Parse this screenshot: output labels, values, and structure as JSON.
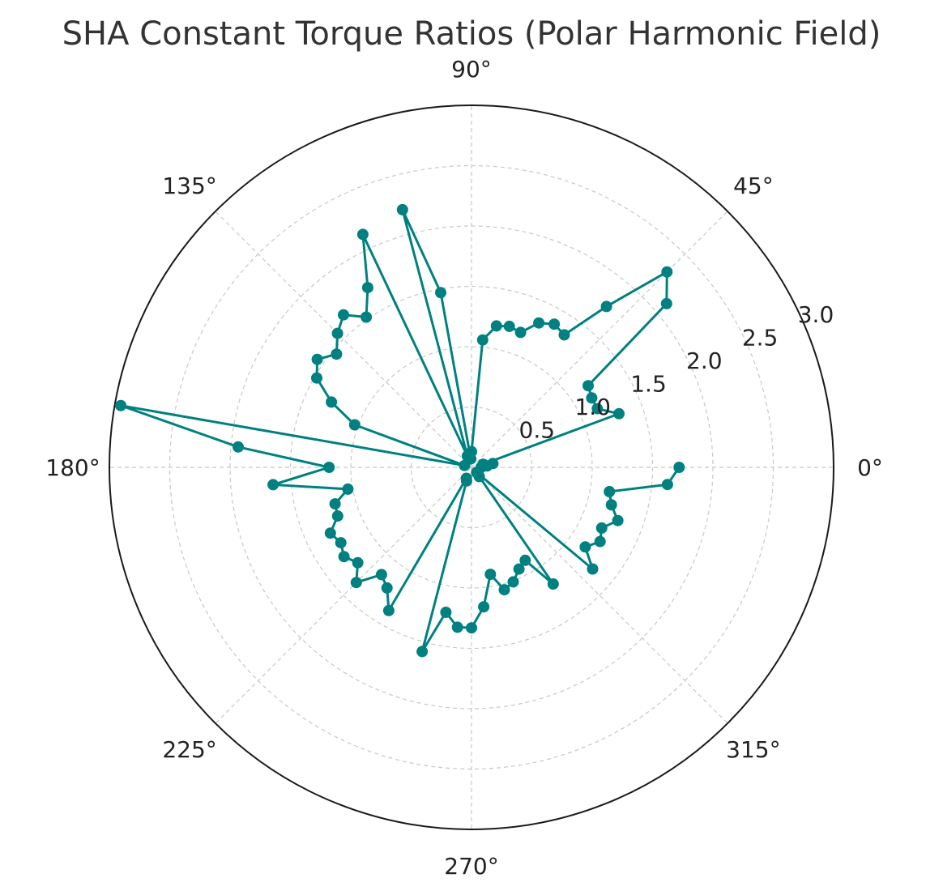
{
  "chart_data": {
    "type": "line",
    "projection": "polar",
    "title": "SHA Constant Torque Ratios (Polar Harmonic Field)",
    "angle_tick_labels": [
      "0°",
      "45°",
      "90°",
      "135°",
      "180°",
      "225°",
      "270°",
      "315°"
    ],
    "angle_tick_values_deg": [
      0,
      45,
      90,
      135,
      180,
      225,
      270,
      315
    ],
    "radial_tick_labels": [
      "0.5",
      "1.0",
      "1.5",
      "2.0",
      "2.5",
      "3.0"
    ],
    "radial_tick_values": [
      0.5,
      1.0,
      1.5,
      2.0,
      2.5,
      3.0
    ],
    "rlim": [
      0,
      3.0
    ],
    "radial_label_angle_deg": 22.5,
    "grid": true,
    "series": [
      {
        "color": "#008080",
        "marker": "circle",
        "theta_deg": [
          0,
          5,
          10,
          15,
          20,
          25,
          30,
          35,
          40,
          45,
          50,
          55,
          60,
          65,
          70,
          75,
          80,
          85,
          90,
          95,
          100,
          105,
          110,
          115,
          120,
          125,
          130,
          135,
          140,
          145,
          150,
          155,
          160,
          165,
          170,
          175,
          180,
          185,
          190,
          195,
          200,
          205,
          210,
          215,
          220,
          225,
          230,
          235,
          240,
          245,
          250,
          255,
          260,
          265,
          270,
          275,
          280,
          285,
          290,
          295,
          300,
          305,
          310,
          315,
          320,
          325,
          330,
          335,
          340,
          345,
          350,
          355,
          360
        ],
        "r": [
          0.08,
          0.13,
          0.18,
          0.1,
          1.3,
          1.15,
          1.15,
          1.18,
          2.11,
          2.29,
          1.74,
          1.34,
          1.37,
          1.32,
          1.19,
          1.21,
          1.19,
          1.06,
          0.13,
          0.07,
          1.47,
          2.21,
          0.1,
          2.13,
          1.72,
          1.52,
          1.65,
          1.57,
          1.46,
          1.56,
          1.48,
          1.28,
          1.03,
          0.06,
          2.95,
          1.94,
          1.18,
          1.65,
          1.04,
          1.17,
          1.18,
          1.29,
          1.25,
          1.29,
          1.23,
          1.35,
          1.16,
          1.22,
          1.37,
          0.1,
          0.12,
          1.58,
          1.22,
          1.33,
          1.33,
          1.16,
          0.9,
          1.05,
          1.01,
          0.93,
          0.89,
          1.18,
          0.1,
          0.06,
          1.31,
          1.15,
          1.23,
          1.19,
          1.29,
          1.2,
          1.16,
          1.63,
          1.72
        ]
      }
    ]
  }
}
